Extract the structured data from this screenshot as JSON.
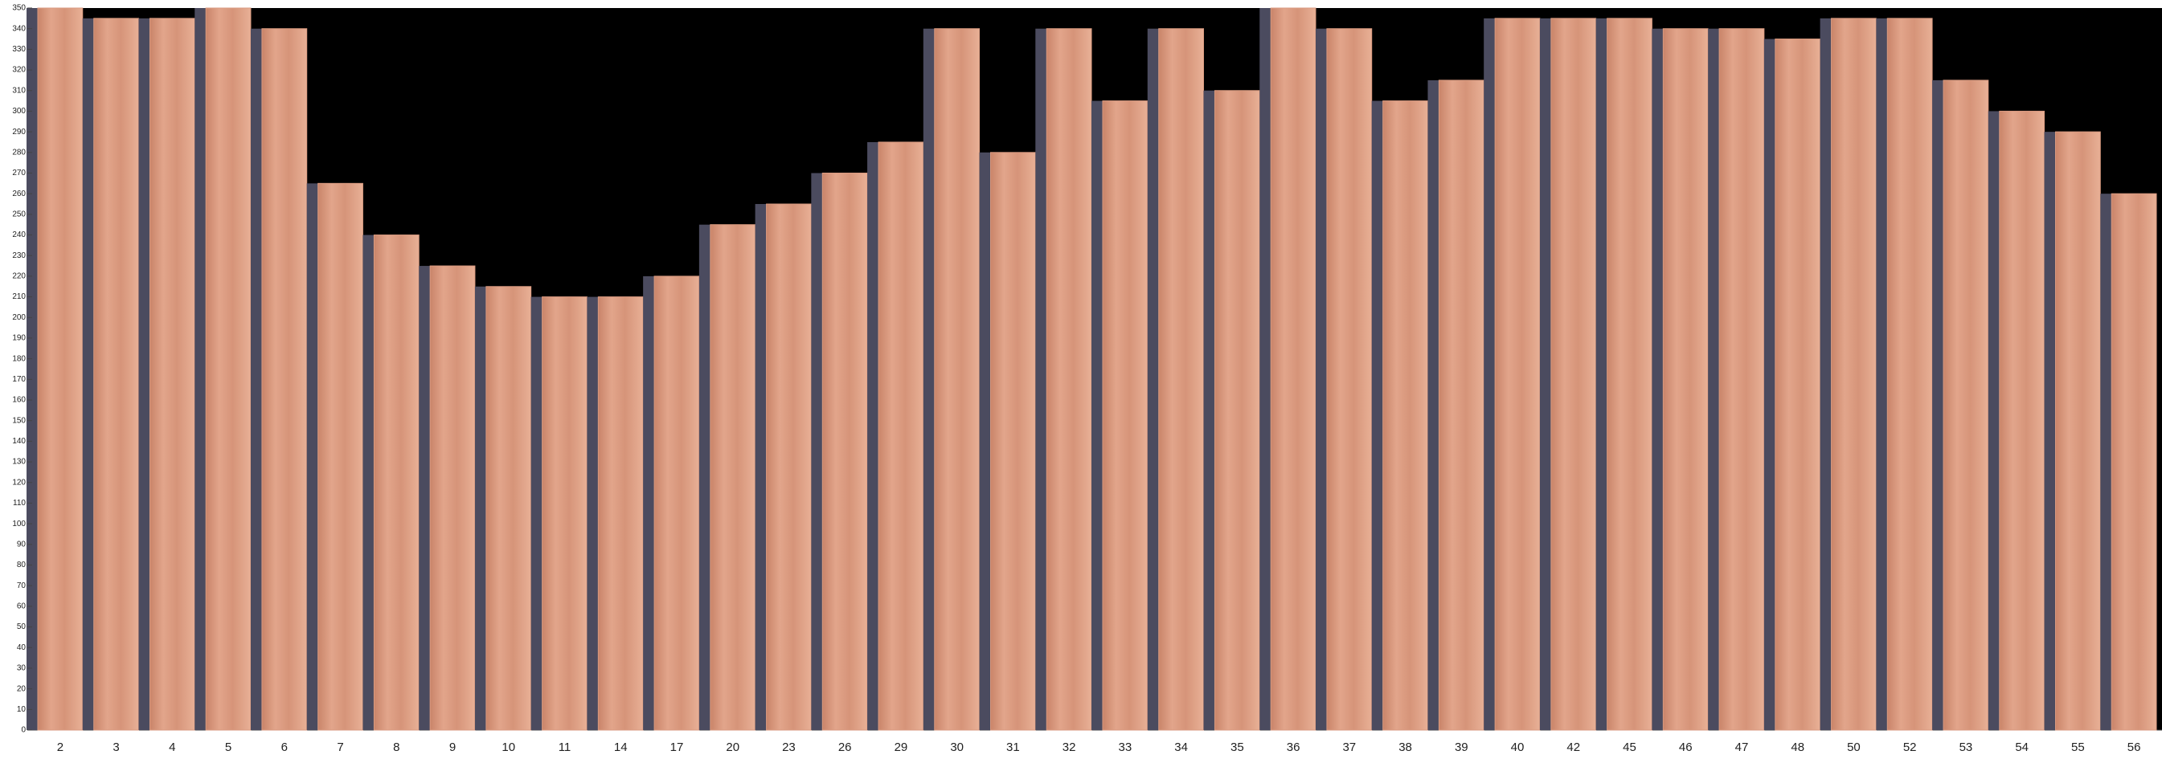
{
  "chart_data": {
    "type": "bar",
    "categories": [
      "2",
      "3",
      "4",
      "5",
      "6",
      "7",
      "8",
      "9",
      "10",
      "11",
      "14",
      "17",
      "20",
      "23",
      "26",
      "29",
      "30",
      "31",
      "32",
      "33",
      "34",
      "35",
      "36",
      "37",
      "38",
      "39",
      "40",
      "42",
      "45",
      "46",
      "47",
      "48",
      "50",
      "52",
      "53",
      "54",
      "55",
      "56"
    ],
    "values": [
      350,
      345,
      345,
      350,
      340,
      265,
      240,
      225,
      215,
      210,
      210,
      220,
      245,
      255,
      270,
      285,
      340,
      280,
      340,
      305,
      340,
      310,
      350,
      340,
      305,
      315,
      345,
      345,
      345,
      340,
      340,
      335,
      345,
      345,
      315,
      300,
      290,
      260
    ],
    "color": "#d99a80",
    "ylim": [
      0,
      350
    ],
    "yticks": [
      0,
      10,
      20,
      30,
      40,
      50,
      60,
      70,
      80,
      90,
      100,
      110,
      120,
      130,
      140,
      150,
      160,
      170,
      180,
      190,
      200,
      210,
      220,
      230,
      240,
      250,
      260,
      270,
      280,
      290,
      300,
      310,
      320,
      330,
      340,
      350
    ]
  }
}
